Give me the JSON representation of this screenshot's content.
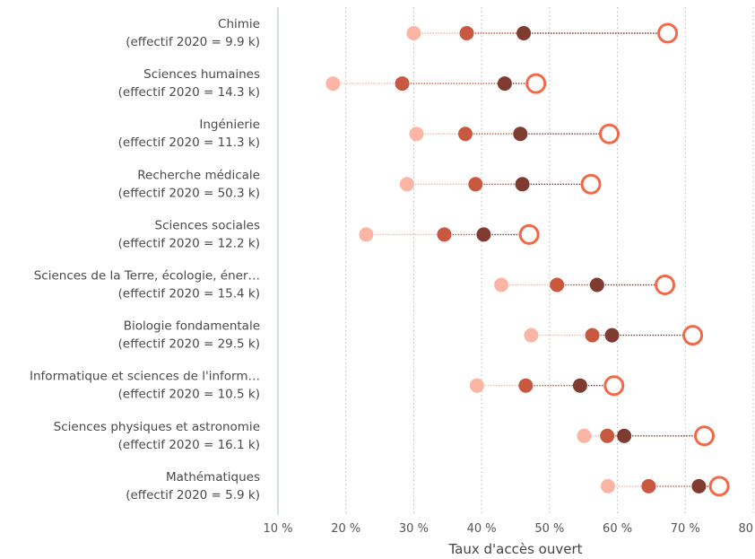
{
  "chart_data": {
    "type": "dot-plot",
    "title": "",
    "xlabel": "Taux d'accès ouvert",
    "ylabel": "",
    "xlim": [
      10,
      80
    ],
    "x_ticks": [
      "10 %",
      "20 %",
      "30 %",
      "40 %",
      "50 %",
      "60 %",
      "70 %",
      "80 %"
    ],
    "grid": "vertical dotted",
    "colors": {
      "light": "#fbb5a4",
      "mid": "#c8583f",
      "dark": "#7f3b30",
      "open": "#f2694a"
    },
    "categories": [
      {
        "name": "Chimie",
        "sub": "(effectif 2020 = 9.9 k)",
        "values": [
          30.0,
          37.8,
          46.2,
          67.4
        ]
      },
      {
        "name": "Sciences humaines",
        "sub": "(effectif 2020 = 14.3 k)",
        "values": [
          18.1,
          28.3,
          43.4,
          48.0
        ]
      },
      {
        "name": "Ingénierie",
        "sub": "(effectif 2020 = 11.3 k)",
        "values": [
          30.4,
          37.6,
          45.7,
          58.8
        ]
      },
      {
        "name": "Recherche médicale",
        "sub": "(effectif 2020 = 50.3 k)",
        "values": [
          29.0,
          39.1,
          46.0,
          56.1
        ]
      },
      {
        "name": "Sciences sociales",
        "sub": "(effectif 2020 = 12.2 k)",
        "values": [
          23.0,
          34.5,
          40.3,
          47.0
        ]
      },
      {
        "name": "Sciences de la Terre, écologie, éner…",
        "sub": "(effectif 2020 = 15.4 k)",
        "values": [
          42.9,
          51.1,
          57.0,
          67.0
        ]
      },
      {
        "name": "Biologie fondamentale",
        "sub": "(effectif 2020 = 29.5 k)",
        "values": [
          47.3,
          56.3,
          59.2,
          71.1
        ]
      },
      {
        "name": "Informatique et sciences de l'inform…",
        "sub": "(effectif 2020 = 10.5 k)",
        "values": [
          39.3,
          46.5,
          54.5,
          59.5
        ]
      },
      {
        "name": "Sciences physiques et astronomie",
        "sub": "(effectif 2020 = 16.1 k)",
        "values": [
          55.1,
          58.5,
          61.0,
          72.8
        ]
      },
      {
        "name": "Mathématiques",
        "sub": "(effectif 2020 = 5.9 k)",
        "values": [
          58.6,
          64.6,
          72.0,
          75.0
        ]
      }
    ]
  }
}
